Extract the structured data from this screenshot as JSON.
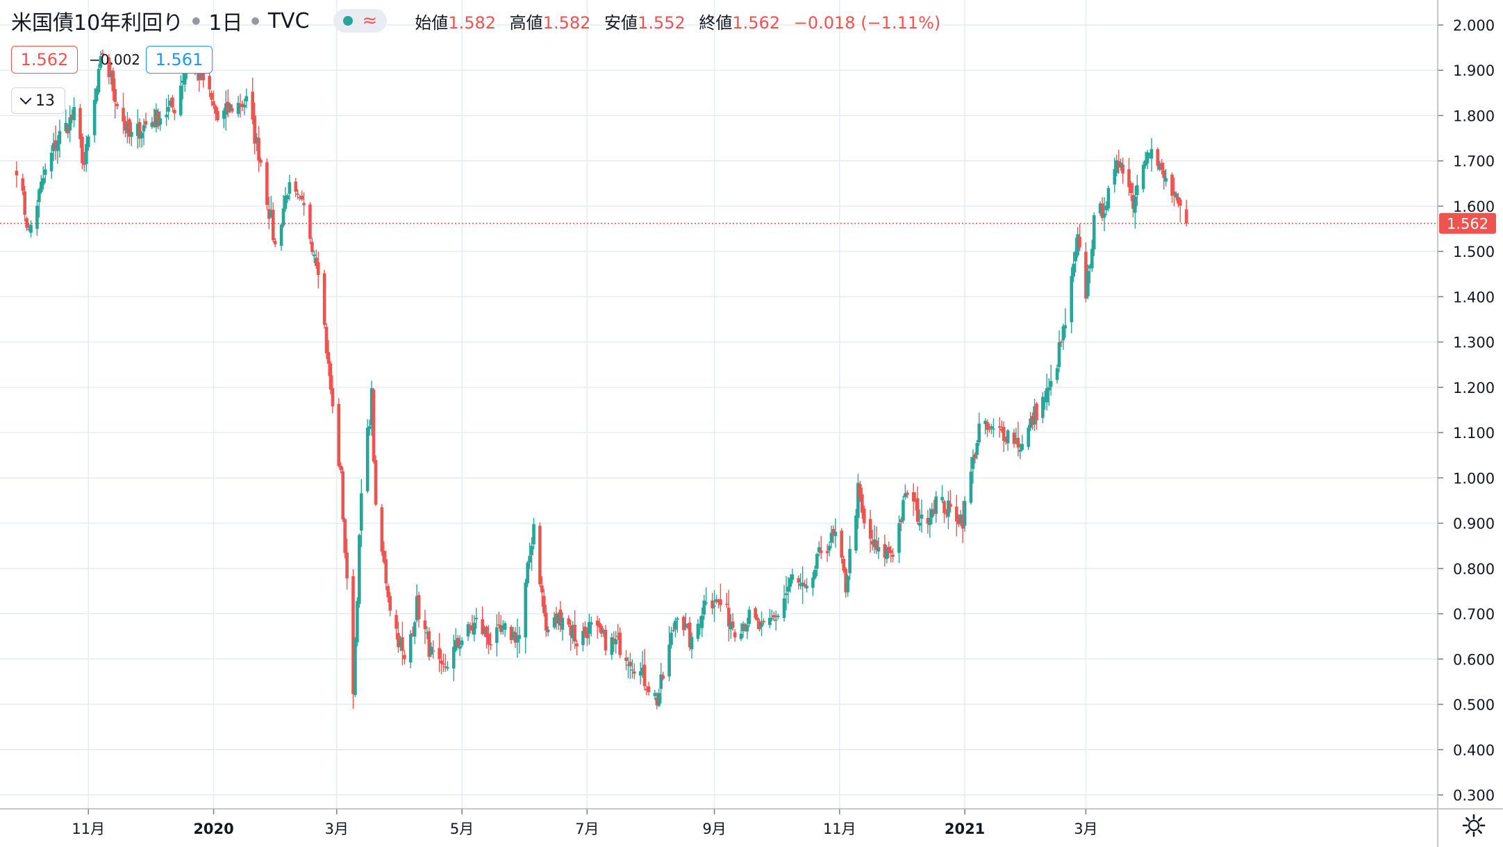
{
  "legend": {
    "title": "米国債10年利回り",
    "timeframe": "1日",
    "source": "TVC",
    "status_symbol": "≈",
    "open_label": "始値",
    "open": "1.582",
    "high_label": "高値",
    "high": "1.582",
    "low_label": "安値",
    "low": "1.552",
    "close_label": "終値",
    "close": "1.562",
    "change": "−0.018 (−1.11%)"
  },
  "trading": {
    "bid": "1.562",
    "spread": "−0.002",
    "ask": "1.561"
  },
  "indicators_toggle": {
    "count": "13"
  },
  "colors": {
    "up": "#26a69a",
    "down": "#ef5350",
    "grid": "#e6ebf2",
    "text": "#131722",
    "ask": "#2196f3"
  },
  "icons": {
    "settings": "gear-icon",
    "collapse": "chevron-down-icon"
  },
  "chart_data": {
    "type": "candlestick",
    "title": "米国債10年利回り",
    "ylim": [
      0.3,
      2.0
    ],
    "yticks": [
      "2.000",
      "1.900",
      "1.800",
      "1.700",
      "1.600",
      "1.500",
      "1.400",
      "1.300",
      "1.200",
      "1.100",
      "1.000",
      "0.900",
      "0.800",
      "0.700",
      "0.600",
      "0.500",
      "0.400",
      "0.300"
    ],
    "xticks": [
      "11月",
      "2020",
      "3月",
      "5月",
      "7月",
      "9月",
      "11月",
      "2021",
      "3月"
    ],
    "last_price": "1.562",
    "grid": true,
    "close_anchors": [
      {
        "date": "2019-09-27",
        "close": 1.69
      },
      {
        "date": "2019-10-03",
        "close": 1.54
      },
      {
        "date": "2019-10-10",
        "close": 1.66
      },
      {
        "date": "2019-10-17",
        "close": 1.75
      },
      {
        "date": "2019-10-25",
        "close": 1.8
      },
      {
        "date": "2019-10-30",
        "close": 1.69
      },
      {
        "date": "2019-11-08",
        "close": 1.94
      },
      {
        "date": "2019-11-15",
        "close": 1.83
      },
      {
        "date": "2019-11-21",
        "close": 1.75
      },
      {
        "date": "2019-11-29",
        "close": 1.78
      },
      {
        "date": "2019-12-13",
        "close": 1.82
      },
      {
        "date": "2019-12-19",
        "close": 1.92
      },
      {
        "date": "2019-12-27",
        "close": 1.88
      },
      {
        "date": "2020-01-03",
        "close": 1.79
      },
      {
        "date": "2020-01-10",
        "close": 1.82
      },
      {
        "date": "2020-01-17",
        "close": 1.83
      },
      {
        "date": "2020-01-24",
        "close": 1.7
      },
      {
        "date": "2020-01-31",
        "close": 1.51
      },
      {
        "date": "2020-02-06",
        "close": 1.64
      },
      {
        "date": "2020-02-14",
        "close": 1.59
      },
      {
        "date": "2020-02-21",
        "close": 1.47
      },
      {
        "date": "2020-02-28",
        "close": 1.15
      },
      {
        "date": "2020-03-03",
        "close": 1.0
      },
      {
        "date": "2020-03-06",
        "close": 0.76
      },
      {
        "date": "2020-03-09",
        "close": 0.54
      },
      {
        "date": "2020-03-13",
        "close": 0.96
      },
      {
        "date": "2020-03-18",
        "close": 1.18
      },
      {
        "date": "2020-03-20",
        "close": 0.92
      },
      {
        "date": "2020-03-27",
        "close": 0.72
      },
      {
        "date": "2020-04-03",
        "close": 0.59
      },
      {
        "date": "2020-04-09",
        "close": 0.72
      },
      {
        "date": "2020-04-16",
        "close": 0.61
      },
      {
        "date": "2020-04-21",
        "close": 0.57
      },
      {
        "date": "2020-04-30",
        "close": 0.64
      },
      {
        "date": "2020-05-08",
        "close": 0.68
      },
      {
        "date": "2020-05-15",
        "close": 0.64
      },
      {
        "date": "2020-05-22",
        "close": 0.66
      },
      {
        "date": "2020-05-29",
        "close": 0.65
      },
      {
        "date": "2020-06-05",
        "close": 0.9
      },
      {
        "date": "2020-06-11",
        "close": 0.66
      },
      {
        "date": "2020-06-19",
        "close": 0.7
      },
      {
        "date": "2020-06-26",
        "close": 0.64
      },
      {
        "date": "2020-07-02",
        "close": 0.67
      },
      {
        "date": "2020-07-10",
        "close": 0.64
      },
      {
        "date": "2020-07-17",
        "close": 0.63
      },
      {
        "date": "2020-07-24",
        "close": 0.59
      },
      {
        "date": "2020-07-31",
        "close": 0.54
      },
      {
        "date": "2020-08-04",
        "close": 0.51
      },
      {
        "date": "2020-08-07",
        "close": 0.56
      },
      {
        "date": "2020-08-14",
        "close": 0.71
      },
      {
        "date": "2020-08-21",
        "close": 0.63
      },
      {
        "date": "2020-08-28",
        "close": 0.74
      },
      {
        "date": "2020-09-04",
        "close": 0.72
      },
      {
        "date": "2020-09-11",
        "close": 0.67
      },
      {
        "date": "2020-09-18",
        "close": 0.69
      },
      {
        "date": "2020-09-25",
        "close": 0.66
      },
      {
        "date": "2020-10-02",
        "close": 0.7
      },
      {
        "date": "2020-10-09",
        "close": 0.78
      },
      {
        "date": "2020-10-16",
        "close": 0.74
      },
      {
        "date": "2020-10-23",
        "close": 0.84
      },
      {
        "date": "2020-10-30",
        "close": 0.87
      },
      {
        "date": "2020-11-04",
        "close": 0.76
      },
      {
        "date": "2020-11-10",
        "close": 0.97
      },
      {
        "date": "2020-11-13",
        "close": 0.89
      },
      {
        "date": "2020-11-20",
        "close": 0.83
      },
      {
        "date": "2020-11-27",
        "close": 0.84
      },
      {
        "date": "2020-12-04",
        "close": 0.97
      },
      {
        "date": "2020-12-11",
        "close": 0.9
      },
      {
        "date": "2020-12-18",
        "close": 0.95
      },
      {
        "date": "2020-12-24",
        "close": 0.93
      },
      {
        "date": "2020-12-31",
        "close": 0.91
      },
      {
        "date": "2021-01-08",
        "close": 1.11
      },
      {
        "date": "2021-01-15",
        "close": 1.1
      },
      {
        "date": "2021-01-22",
        "close": 1.1
      },
      {
        "date": "2021-01-29",
        "close": 1.07
      },
      {
        "date": "2021-02-04",
        "close": 1.14
      },
      {
        "date": "2021-02-12",
        "close": 1.2
      },
      {
        "date": "2021-02-19",
        "close": 1.34
      },
      {
        "date": "2021-02-25",
        "close": 1.52
      },
      {
        "date": "2021-03-01",
        "close": 1.41
      },
      {
        "date": "2021-03-05",
        "close": 1.56
      },
      {
        "date": "2021-03-12",
        "close": 1.62
      },
      {
        "date": "2021-03-18",
        "close": 1.71
      },
      {
        "date": "2021-03-24",
        "close": 1.61
      },
      {
        "date": "2021-03-31",
        "close": 1.74
      },
      {
        "date": "2021-04-07",
        "close": 1.67
      },
      {
        "date": "2021-04-13",
        "close": 1.62
      },
      {
        "date": "2021-04-16",
        "close": 1.58
      },
      {
        "date": "2021-04-19",
        "close": 1.562
      }
    ]
  }
}
